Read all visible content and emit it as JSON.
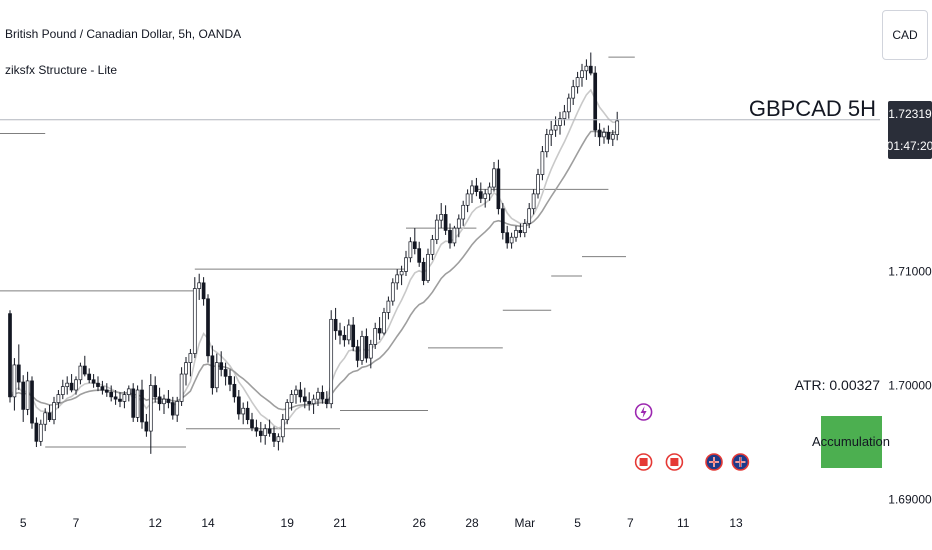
{
  "header": {
    "title": "British Pound / Canadian Dollar, 5h, OANDA",
    "indicator": "ziksfx Structure - Lite"
  },
  "currency": "CAD",
  "symbol_label": "GBPCAD 5H",
  "price_badge": {
    "price": "1.72319",
    "countdown": "01:47:20"
  },
  "atr_text": "ATR: 0.00327",
  "state_label": "Accumulation",
  "colors": {
    "bull_fill": "#ffffff",
    "candle_stroke": "#131722",
    "bear_fill": "#131722",
    "ma_fast": "#c9c9c9",
    "ma_slow": "#9e9e9e",
    "structure": "#7f7f7f",
    "accumulation": "#4caf50",
    "event_red": "#e53935",
    "event_purple": "#9c27b0"
  },
  "chart_data": {
    "type": "candlestick",
    "y_ticks": [
      "1.71000",
      "1.70000",
      "1.69000"
    ],
    "y_tick_values": [
      1.71,
      1.7,
      1.69
    ],
    "ylim": [
      1.6882,
      1.731
    ],
    "x_tick_labels": [
      "5",
      "7",
      "12",
      "14",
      "19",
      "21",
      "26",
      "28",
      "Mar",
      "5",
      "7",
      "11",
      "13"
    ],
    "x_tick_index": [
      3,
      15,
      33,
      45,
      63,
      75,
      93,
      105,
      117,
      129,
      141,
      153,
      165
    ],
    "candles": [
      [
        1.7063,
        1.7066,
        1.6985,
        1.699
      ],
      [
        1.699,
        1.7024,
        1.6978,
        1.7018
      ],
      [
        1.7018,
        1.7036,
        1.6996,
        1.7003
      ],
      [
        1.7003,
        1.7009,
        1.6968,
        1.6979
      ],
      [
        1.6979,
        1.7012,
        1.6974,
        1.7004
      ],
      [
        1.7004,
        1.7008,
        1.6962,
        1.6967
      ],
      [
        1.6967,
        1.6972,
        1.6946,
        1.6951
      ],
      [
        1.6951,
        1.697,
        1.6947,
        1.6966
      ],
      [
        1.6966,
        1.698,
        1.696,
        1.6976
      ],
      [
        1.6976,
        1.6983,
        1.6968,
        1.697
      ],
      [
        1.697,
        1.699,
        1.6966,
        1.6985
      ],
      [
        1.6985,
        1.6996,
        1.698,
        1.6992
      ],
      [
        1.6992,
        1.7005,
        1.6988,
        1.6999
      ],
      [
        1.6999,
        1.7008,
        1.6992,
        1.7002
      ],
      [
        1.7002,
        1.701,
        1.6994,
        1.6996
      ],
      [
        1.6996,
        1.7008,
        1.6992,
        1.7005
      ],
      [
        1.7005,
        1.702,
        1.7001,
        1.7017
      ],
      [
        1.7017,
        1.7026,
        1.7008,
        1.701
      ],
      [
        1.701,
        1.7015,
        1.7002,
        1.7005
      ],
      [
        1.7005,
        1.701,
        1.6998,
        1.7002
      ],
      [
        1.7002,
        1.7008,
        1.6995,
        1.6999
      ],
      [
        1.6999,
        1.7004,
        1.6992,
        1.6996
      ],
      [
        1.6996,
        1.7002,
        1.699,
        1.6994
      ],
      [
        1.6994,
        1.7,
        1.6986,
        1.699
      ],
      [
        1.699,
        1.6996,
        1.6983,
        1.6988
      ],
      [
        1.6988,
        1.6994,
        1.6981,
        1.6986
      ],
      [
        1.6986,
        1.6995,
        1.698,
        1.6992
      ],
      [
        1.6992,
        1.7,
        1.6986,
        1.6997
      ],
      [
        1.6997,
        1.7002,
        1.6968,
        1.6972
      ],
      [
        1.6972,
        1.7,
        1.6968,
        1.6996
      ],
      [
        1.6996,
        1.7005,
        1.6962,
        1.6968
      ],
      [
        1.6968,
        1.6975,
        1.6955,
        1.696
      ],
      [
        1.696,
        1.701,
        1.694,
        1.7
      ],
      [
        1.7,
        1.7008,
        1.6985,
        1.699
      ],
      [
        1.699,
        1.6998,
        1.6978,
        1.6984
      ],
      [
        1.6984,
        1.6992,
        1.6975,
        1.6988
      ],
      [
        1.6988,
        1.6996,
        1.698,
        1.6985
      ],
      [
        1.6985,
        1.699,
        1.697,
        1.6974
      ],
      [
        1.6974,
        1.699,
        1.6968,
        1.6986
      ],
      [
        1.6986,
        1.7016,
        1.6982,
        1.701
      ],
      [
        1.701,
        1.7025,
        1.7,
        1.702
      ],
      [
        1.702,
        1.7032,
        1.7008,
        1.7028
      ],
      [
        1.7028,
        1.7095,
        1.7024,
        1.7085
      ],
      [
        1.7085,
        1.7098,
        1.7075,
        1.709
      ],
      [
        1.709,
        1.7095,
        1.707,
        1.7076
      ],
      [
        1.7076,
        1.708,
        1.702,
        1.7026
      ],
      [
        1.7026,
        1.7035,
        1.6992,
        1.6998
      ],
      [
        1.6998,
        1.7028,
        1.6994,
        1.702
      ],
      [
        1.702,
        1.703,
        1.7008,
        1.7014
      ],
      [
        1.7014,
        1.702,
        1.7,
        1.7008
      ],
      [
        1.7008,
        1.7014,
        1.6995,
        1.7001
      ],
      [
        1.7001,
        1.7008,
        1.6985,
        1.699
      ],
      [
        1.699,
        1.6996,
        1.697,
        1.6975
      ],
      [
        1.6975,
        1.6985,
        1.6966,
        1.698
      ],
      [
        1.698,
        1.6986,
        1.6966,
        1.697
      ],
      [
        1.697,
        1.6976,
        1.696,
        1.6963
      ],
      [
        1.6963,
        1.697,
        1.6955,
        1.696
      ],
      [
        1.696,
        1.6968,
        1.695,
        1.6956
      ],
      [
        1.6956,
        1.6966,
        1.6948,
        1.6962
      ],
      [
        1.6962,
        1.697,
        1.6955,
        1.6958
      ],
      [
        1.6958,
        1.6964,
        1.6946,
        1.6951
      ],
      [
        1.6951,
        1.6958,
        1.6943,
        1.6955
      ],
      [
        1.6955,
        1.6975,
        1.695,
        1.697
      ],
      [
        1.697,
        1.6988,
        1.6966,
        1.6985
      ],
      [
        1.6985,
        1.6996,
        1.6978,
        1.6992
      ],
      [
        1.6992,
        1.7,
        1.6984,
        1.6996
      ],
      [
        1.6996,
        1.7003,
        1.6985,
        1.699
      ],
      [
        1.699,
        1.6998,
        1.698,
        1.6986
      ],
      [
        1.6986,
        1.6994,
        1.6978,
        1.6984
      ],
      [
        1.6984,
        1.6992,
        1.6975,
        1.6988
      ],
      [
        1.6988,
        1.6998,
        1.6982,
        1.6994
      ],
      [
        1.6994,
        1.7,
        1.6984,
        1.6988
      ],
      [
        1.6988,
        1.6995,
        1.698,
        1.6984
      ],
      [
        1.6984,
        1.7066,
        1.698,
        1.7058
      ],
      [
        1.7058,
        1.7068,
        1.704,
        1.7048
      ],
      [
        1.7048,
        1.7055,
        1.7036,
        1.7044
      ],
      [
        1.7044,
        1.7052,
        1.7034,
        1.704
      ],
      [
        1.704,
        1.7058,
        1.7036,
        1.7053
      ],
      [
        1.7053,
        1.706,
        1.703,
        1.7034
      ],
      [
        1.7034,
        1.704,
        1.7016,
        1.7022
      ],
      [
        1.7022,
        1.7048,
        1.7018,
        1.7043
      ],
      [
        1.7043,
        1.705,
        1.702,
        1.7024
      ],
      [
        1.7024,
        1.704,
        1.7015,
        1.7036
      ],
      [
        1.7036,
        1.7055,
        1.7032,
        1.705
      ],
      [
        1.705,
        1.706,
        1.704,
        1.7046
      ],
      [
        1.7046,
        1.7068,
        1.7044,
        1.7064
      ],
      [
        1.7064,
        1.7078,
        1.7058,
        1.7074
      ],
      [
        1.7074,
        1.7094,
        1.707,
        1.709
      ],
      [
        1.709,
        1.7102,
        1.7084,
        1.7097
      ],
      [
        1.7097,
        1.7105,
        1.7088,
        1.71
      ],
      [
        1.71,
        1.7118,
        1.7096,
        1.7112
      ],
      [
        1.7112,
        1.713,
        1.7108,
        1.7126
      ],
      [
        1.7126,
        1.7138,
        1.7115,
        1.712
      ],
      [
        1.712,
        1.7126,
        1.7104,
        1.7108
      ],
      [
        1.7108,
        1.7112,
        1.7088,
        1.7092
      ],
      [
        1.7092,
        1.712,
        1.709,
        1.7115
      ],
      [
        1.7115,
        1.7132,
        1.711,
        1.7128
      ],
      [
        1.7128,
        1.715,
        1.7124,
        1.7145
      ],
      [
        1.7145,
        1.716,
        1.7138,
        1.715
      ],
      [
        1.715,
        1.7158,
        1.7132,
        1.7136
      ],
      [
        1.7136,
        1.7142,
        1.712,
        1.7125
      ],
      [
        1.7125,
        1.714,
        1.7122,
        1.7138
      ],
      [
        1.7138,
        1.715,
        1.713,
        1.7146
      ],
      [
        1.7146,
        1.7162,
        1.714,
        1.7158
      ],
      [
        1.7158,
        1.7172,
        1.7152,
        1.7168
      ],
      [
        1.7168,
        1.718,
        1.716,
        1.7175
      ],
      [
        1.7175,
        1.7182,
        1.7166,
        1.717
      ],
      [
        1.717,
        1.7178,
        1.716,
        1.7164
      ],
      [
        1.7164,
        1.7172,
        1.7156,
        1.7168
      ],
      [
        1.7168,
        1.7178,
        1.7162,
        1.7174
      ],
      [
        1.7174,
        1.7196,
        1.717,
        1.719
      ],
      [
        1.719,
        1.7198,
        1.715,
        1.7155
      ],
      [
        1.7155,
        1.716,
        1.7128,
        1.7134
      ],
      [
        1.7134,
        1.714,
        1.712,
        1.7125
      ],
      [
        1.7125,
        1.7134,
        1.712,
        1.713
      ],
      [
        1.713,
        1.714,
        1.7126,
        1.7136
      ],
      [
        1.7136,
        1.7142,
        1.713,
        1.7134
      ],
      [
        1.7134,
        1.7146,
        1.713,
        1.7142
      ],
      [
        1.7142,
        1.716,
        1.7138,
        1.7155
      ],
      [
        1.7155,
        1.7172,
        1.715,
        1.7168
      ],
      [
        1.7168,
        1.719,
        1.7164,
        1.7185
      ],
      [
        1.7185,
        1.721,
        1.718,
        1.7205
      ],
      [
        1.7205,
        1.7225,
        1.72,
        1.722
      ],
      [
        1.722,
        1.7232,
        1.721,
        1.7224
      ],
      [
        1.7224,
        1.7236,
        1.7218,
        1.7228
      ],
      [
        1.7228,
        1.724,
        1.722,
        1.7234
      ],
      [
        1.7234,
        1.7246,
        1.7228,
        1.724
      ],
      [
        1.724,
        1.7256,
        1.7234,
        1.7252
      ],
      [
        1.7252,
        1.7268,
        1.7246,
        1.7262
      ],
      [
        1.7262,
        1.7275,
        1.7256,
        1.727
      ],
      [
        1.727,
        1.7282,
        1.7262,
        1.7276
      ],
      [
        1.7276,
        1.7286,
        1.7268,
        1.728
      ],
      [
        1.728,
        1.7292,
        1.7272,
        1.7274
      ],
      [
        1.7274,
        1.728,
        1.7218,
        1.7224
      ],
      [
        1.7224,
        1.723,
        1.721,
        1.7218
      ],
      [
        1.7218,
        1.7226,
        1.7212,
        1.7222
      ],
      [
        1.7222,
        1.7228,
        1.7212,
        1.7216
      ],
      [
        1.7216,
        1.7224,
        1.721,
        1.722
      ],
      [
        1.722,
        1.724,
        1.7215,
        1.7232
      ]
    ],
    "structure_levels": [
      {
        "kind": "resistance",
        "from": 0,
        "to": 8,
        "y": 1.7221
      },
      {
        "kind": "resistance",
        "from": 0,
        "to": 42,
        "y": 1.7083
      },
      {
        "kind": "support",
        "from": 8,
        "to": 40,
        "y": 1.6946
      },
      {
        "kind": "resistance",
        "from": 42,
        "to": 90,
        "y": 1.7102
      },
      {
        "kind": "support",
        "from": 40,
        "to": 75,
        "y": 1.6962
      },
      {
        "kind": "support",
        "from": 75,
        "to": 95,
        "y": 1.6978
      },
      {
        "kind": "resistance",
        "from": 90,
        "to": 106,
        "y": 1.7138
      },
      {
        "kind": "support",
        "from": 95,
        "to": 112,
        "y": 1.7033
      },
      {
        "kind": "resistance",
        "from": 106,
        "to": 136,
        "y": 1.7172
      },
      {
        "kind": "support",
        "from": 112,
        "to": 123,
        "y": 1.7066
      },
      {
        "kind": "support",
        "from": 123,
        "to": 130,
        "y": 1.7096
      },
      {
        "kind": "support",
        "from": 130,
        "to": 140,
        "y": 1.7113
      },
      {
        "kind": "resistance",
        "from": 136,
        "to": 142,
        "y": 1.7288
      }
    ],
    "events": [
      {
        "kind": "lightning",
        "index": 144,
        "row": 0
      },
      {
        "kind": "ca-flag",
        "index": 144,
        "row": 1
      },
      {
        "kind": "ca-flag",
        "index": 151,
        "row": 1
      },
      {
        "kind": "uk-flag",
        "index": 160,
        "row": 1
      },
      {
        "kind": "uk-flag",
        "index": 166,
        "row": 1
      }
    ]
  }
}
